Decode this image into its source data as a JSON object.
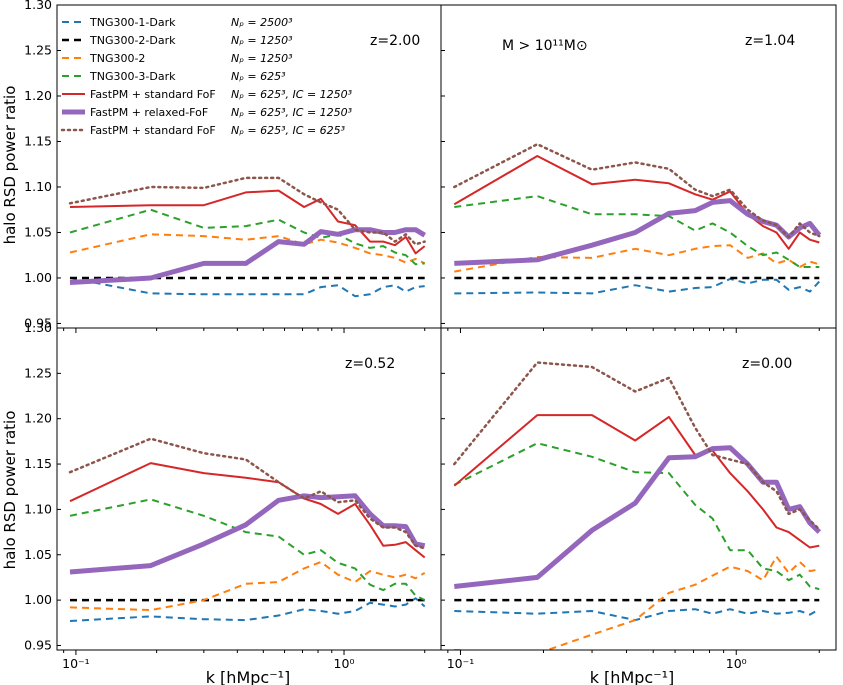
{
  "figure": {
    "ylabel": "halo RSD power ratio",
    "xlabel": "k [hMpc⁻¹]",
    "mass_cut": "M > 10¹¹M⊙"
  },
  "legend": [
    {
      "series": "TNG300-1-Dark",
      "np": "Nₚ = 2500³"
    },
    {
      "series": "TNG300-2-Dark",
      "np": "Nₚ = 1250³"
    },
    {
      "series": "TNG300-2",
      "np": "Nₚ = 1250³"
    },
    {
      "series": "TNG300-3-Dark",
      "np": "Nₚ = 625³"
    },
    {
      "series": "FastPM + standard FoF",
      "np": "Nₚ = 625³, IC = 1250³"
    },
    {
      "series": "FastPM + relaxed-FoF",
      "np": "Nₚ = 625³, IC = 1250³"
    },
    {
      "series": "FastPM + standard FoF",
      "np": "Nₚ = 625³, IC = 625³"
    }
  ],
  "styles": [
    {
      "color": "#1f77b4",
      "dash": "dashed",
      "width": 2
    },
    {
      "color": "#000000",
      "dash": "dashed",
      "width": 2.5
    },
    {
      "color": "#ff7f0e",
      "dash": "dashed",
      "width": 2
    },
    {
      "color": "#2ca02c",
      "dash": "dashed",
      "width": 2
    },
    {
      "color": "#d62728",
      "dash": "solid",
      "width": 2
    },
    {
      "color": "#9467bd",
      "dash": "solid",
      "width": 5
    },
    {
      "color": "#8c564b",
      "dash": "dotted",
      "width": 2.5
    }
  ],
  "chart_data": {
    "type": "line",
    "xscale": "log",
    "xlim": [
      0.085,
      2.3
    ],
    "ylim": [
      0.945,
      1.3
    ],
    "yticks": [
      "0.95",
      "1.00",
      "1.05",
      "1.10",
      "1.15",
      "1.20",
      "1.25",
      "1.30"
    ],
    "xticks": [
      "10⁻¹",
      "10⁰"
    ],
    "k": [
      0.095,
      0.19,
      0.3,
      0.43,
      0.57,
      0.71,
      0.82,
      0.95,
      1.1,
      1.25,
      1.4,
      1.55,
      1.7,
      1.85,
      2.0
    ],
    "panels": [
      {
        "label": "z=2.00",
        "series": [
          [
            1.0,
            0.983,
            0.982,
            0.982,
            0.982,
            0.982,
            0.99,
            0.992,
            0.98,
            0.982,
            0.99,
            0.992,
            0.985,
            0.99,
            0.991
          ],
          [
            1.0,
            1.0,
            1.0,
            1.0,
            1.0,
            1.0,
            1.0,
            1.0,
            1.0,
            1.0,
            1.0,
            1.0,
            1.0,
            1.0,
            1.0
          ],
          [
            1.028,
            1.048,
            1.046,
            1.042,
            1.046,
            1.037,
            1.042,
            1.039,
            1.033,
            1.027,
            1.025,
            1.022,
            1.017,
            1.021,
            1.016
          ],
          [
            1.05,
            1.075,
            1.055,
            1.057,
            1.064,
            1.05,
            1.044,
            1.048,
            1.038,
            1.033,
            1.035,
            1.028,
            1.025,
            1.015,
            1.016
          ],
          [
            1.078,
            1.08,
            1.08,
            1.094,
            1.096,
            1.078,
            1.087,
            1.062,
            1.058,
            1.04,
            1.04,
            1.036,
            1.045,
            1.027,
            1.035
          ],
          [
            0.995,
            1.0,
            1.016,
            1.016,
            1.04,
            1.037,
            1.051,
            1.048,
            1.053,
            1.053,
            1.05,
            1.05,
            1.053,
            1.053,
            1.047
          ],
          [
            1.082,
            1.1,
            1.099,
            1.11,
            1.11,
            1.092,
            1.083,
            1.075,
            1.053,
            1.05,
            1.05,
            1.04,
            1.048,
            1.037,
            1.04
          ]
        ]
      },
      {
        "label": "z=1.04",
        "series": [
          [
            0.983,
            0.984,
            0.983,
            0.992,
            0.985,
            0.989,
            0.99,
            0.999,
            0.994,
            0.998,
            0.998,
            0.987,
            0.99,
            0.985,
            0.996
          ],
          [
            1.0,
            1.0,
            1.0,
            1.0,
            1.0,
            1.0,
            1.0,
            1.0,
            1.0,
            1.0,
            1.0,
            1.0,
            1.0,
            1.0,
            1.0
          ],
          [
            1.007,
            1.023,
            1.022,
            1.032,
            1.025,
            1.032,
            1.035,
            1.036,
            1.022,
            1.027,
            1.016,
            1.02,
            1.012,
            1.018,
            1.015
          ],
          [
            1.078,
            1.09,
            1.07,
            1.07,
            1.068,
            1.052,
            1.06,
            1.05,
            1.035,
            1.025,
            1.028,
            1.02,
            1.012,
            1.012,
            1.012
          ],
          [
            1.081,
            1.134,
            1.103,
            1.108,
            1.104,
            1.092,
            1.086,
            1.095,
            1.07,
            1.057,
            1.05,
            1.032,
            1.05,
            1.042,
            1.039
          ],
          [
            1.016,
            1.02,
            1.036,
            1.05,
            1.071,
            1.074,
            1.083,
            1.085,
            1.07,
            1.062,
            1.058,
            1.045,
            1.055,
            1.06,
            1.047
          ],
          [
            1.1,
            1.147,
            1.119,
            1.127,
            1.12,
            1.097,
            1.09,
            1.097,
            1.075,
            1.063,
            1.058,
            1.045,
            1.06,
            1.05,
            1.046
          ]
        ]
      },
      {
        "label": "z=0.52",
        "series": [
          [
            0.977,
            0.982,
            0.979,
            0.978,
            0.983,
            0.99,
            0.988,
            0.985,
            0.988,
            0.997,
            0.995,
            0.993,
            0.995,
            1.002,
            0.993
          ],
          [
            1.0,
            1.0,
            1.0,
            1.0,
            1.0,
            1.0,
            1.0,
            1.0,
            1.0,
            1.0,
            1.0,
            1.0,
            1.0,
            1.0,
            1.0
          ],
          [
            0.992,
            0.989,
            1.0,
            1.018,
            1.02,
            1.035,
            1.042,
            1.028,
            1.02,
            1.032,
            1.028,
            1.025,
            1.028,
            1.024,
            1.03
          ],
          [
            1.093,
            1.111,
            1.093,
            1.075,
            1.07,
            1.05,
            1.055,
            1.041,
            1.035,
            1.017,
            1.011,
            1.018,
            1.018,
            1.005,
            1.0
          ],
          [
            1.109,
            1.151,
            1.14,
            1.135,
            1.13,
            1.112,
            1.106,
            1.095,
            1.106,
            1.083,
            1.06,
            1.061,
            1.064,
            1.055,
            1.047
          ],
          [
            1.031,
            1.038,
            1.062,
            1.083,
            1.11,
            1.115,
            1.113,
            1.114,
            1.115,
            1.095,
            1.082,
            1.082,
            1.081,
            1.062,
            1.06
          ],
          [
            1.141,
            1.178,
            1.162,
            1.155,
            1.13,
            1.112,
            1.12,
            1.108,
            1.11,
            1.09,
            1.08,
            1.08,
            1.075,
            1.06,
            1.057
          ]
        ]
      },
      {
        "label": "z=0.00",
        "series": [
          [
            0.988,
            0.985,
            0.988,
            0.978,
            0.988,
            0.99,
            0.985,
            0.99,
            0.985,
            0.988,
            0.985,
            0.986,
            0.988,
            0.984,
            0.99
          ],
          [
            1.0,
            1.0,
            1.0,
            1.0,
            1.0,
            1.0,
            1.0,
            1.0,
            1.0,
            1.0,
            1.0,
            1.0,
            1.0,
            1.0,
            1.0
          ],
          [
            0.945,
            0.941,
            0.962,
            0.978,
            1.008,
            1.017,
            1.027,
            1.037,
            1.032,
            1.022,
            1.048,
            1.03,
            1.042,
            1.032,
            1.034
          ],
          [
            1.127,
            1.173,
            1.158,
            1.141,
            1.14,
            1.105,
            1.09,
            1.055,
            1.055,
            1.035,
            1.032,
            1.022,
            1.028,
            1.015,
            1.012
          ],
          [
            1.126,
            1.204,
            1.204,
            1.176,
            1.202,
            1.16,
            1.165,
            1.14,
            1.12,
            1.1,
            1.08,
            1.075,
            1.066,
            1.058,
            1.06
          ],
          [
            1.015,
            1.025,
            1.077,
            1.107,
            1.157,
            1.158,
            1.167,
            1.168,
            1.15,
            1.13,
            1.13,
            1.1,
            1.103,
            1.085,
            1.075
          ],
          [
            1.15,
            1.262,
            1.257,
            1.23,
            1.245,
            1.19,
            1.16,
            1.155,
            1.15,
            1.13,
            1.12,
            1.095,
            1.1,
            1.088,
            1.078
          ]
        ]
      }
    ]
  }
}
